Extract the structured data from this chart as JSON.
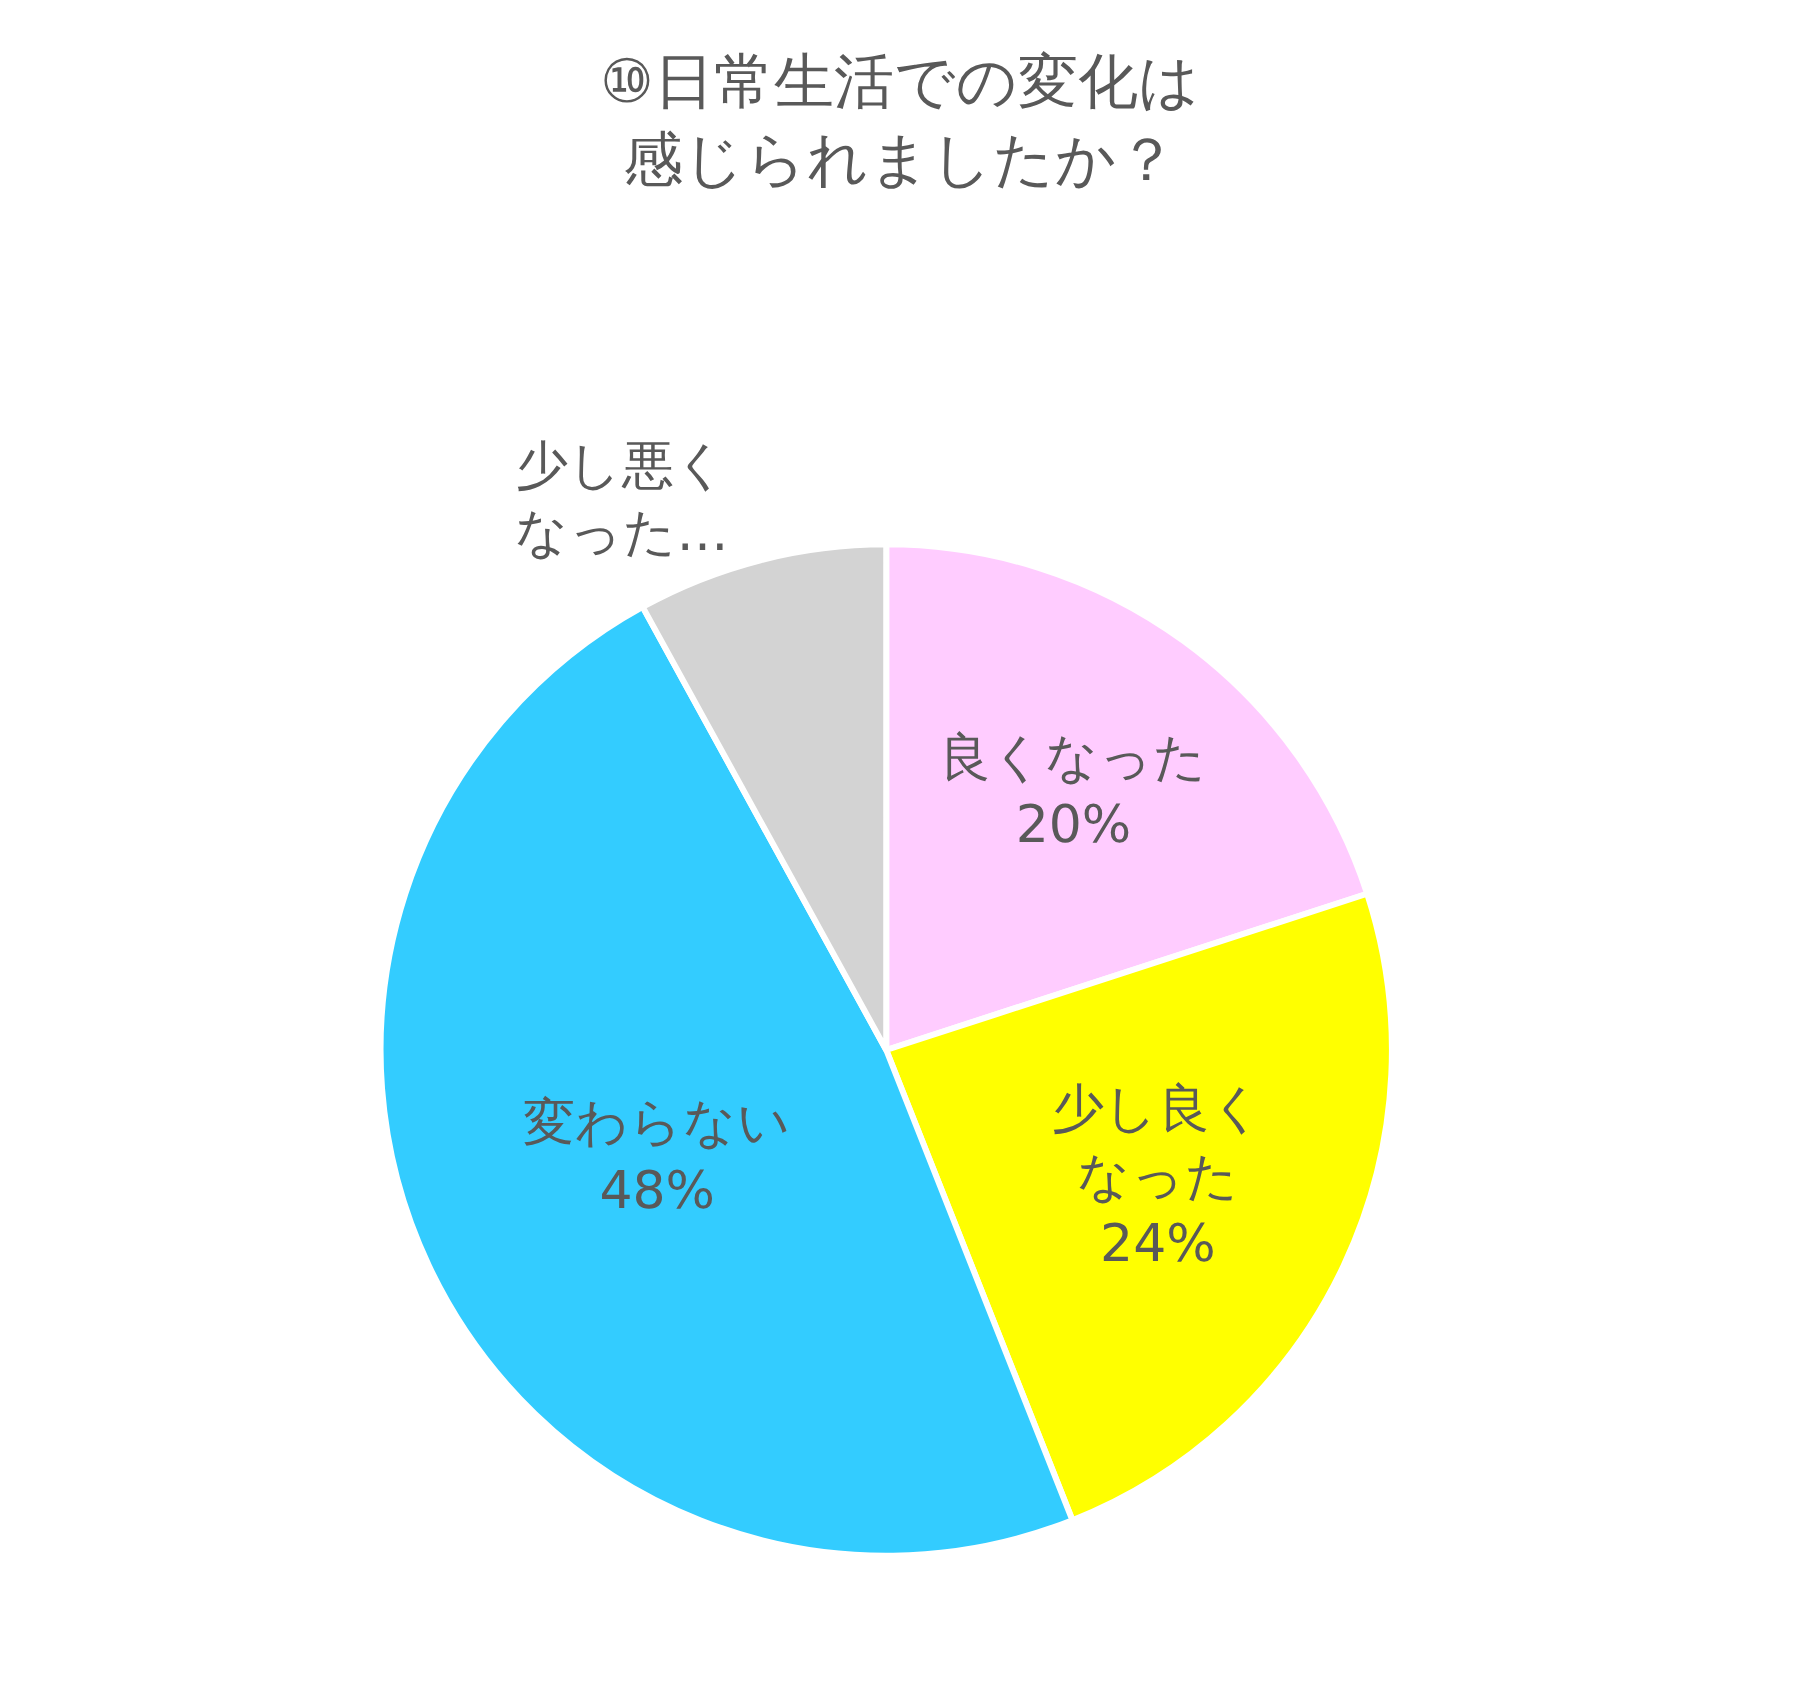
{
  "chart_data": {
    "type": "pie",
    "title": "⑩日常生活での変化は感じられましたか？",
    "categories": [
      "良くなった",
      "少し良くなった",
      "変わらない",
      "少し悪くなった…"
    ],
    "values": [
      20,
      24,
      48,
      8
    ],
    "colors": [
      "#ffccff",
      "#ffff00",
      "#33ccff",
      "#d3d3d3"
    ],
    "value_labels": [
      "20%",
      "24%",
      "48%",
      null
    ],
    "legend": false
  }
}
